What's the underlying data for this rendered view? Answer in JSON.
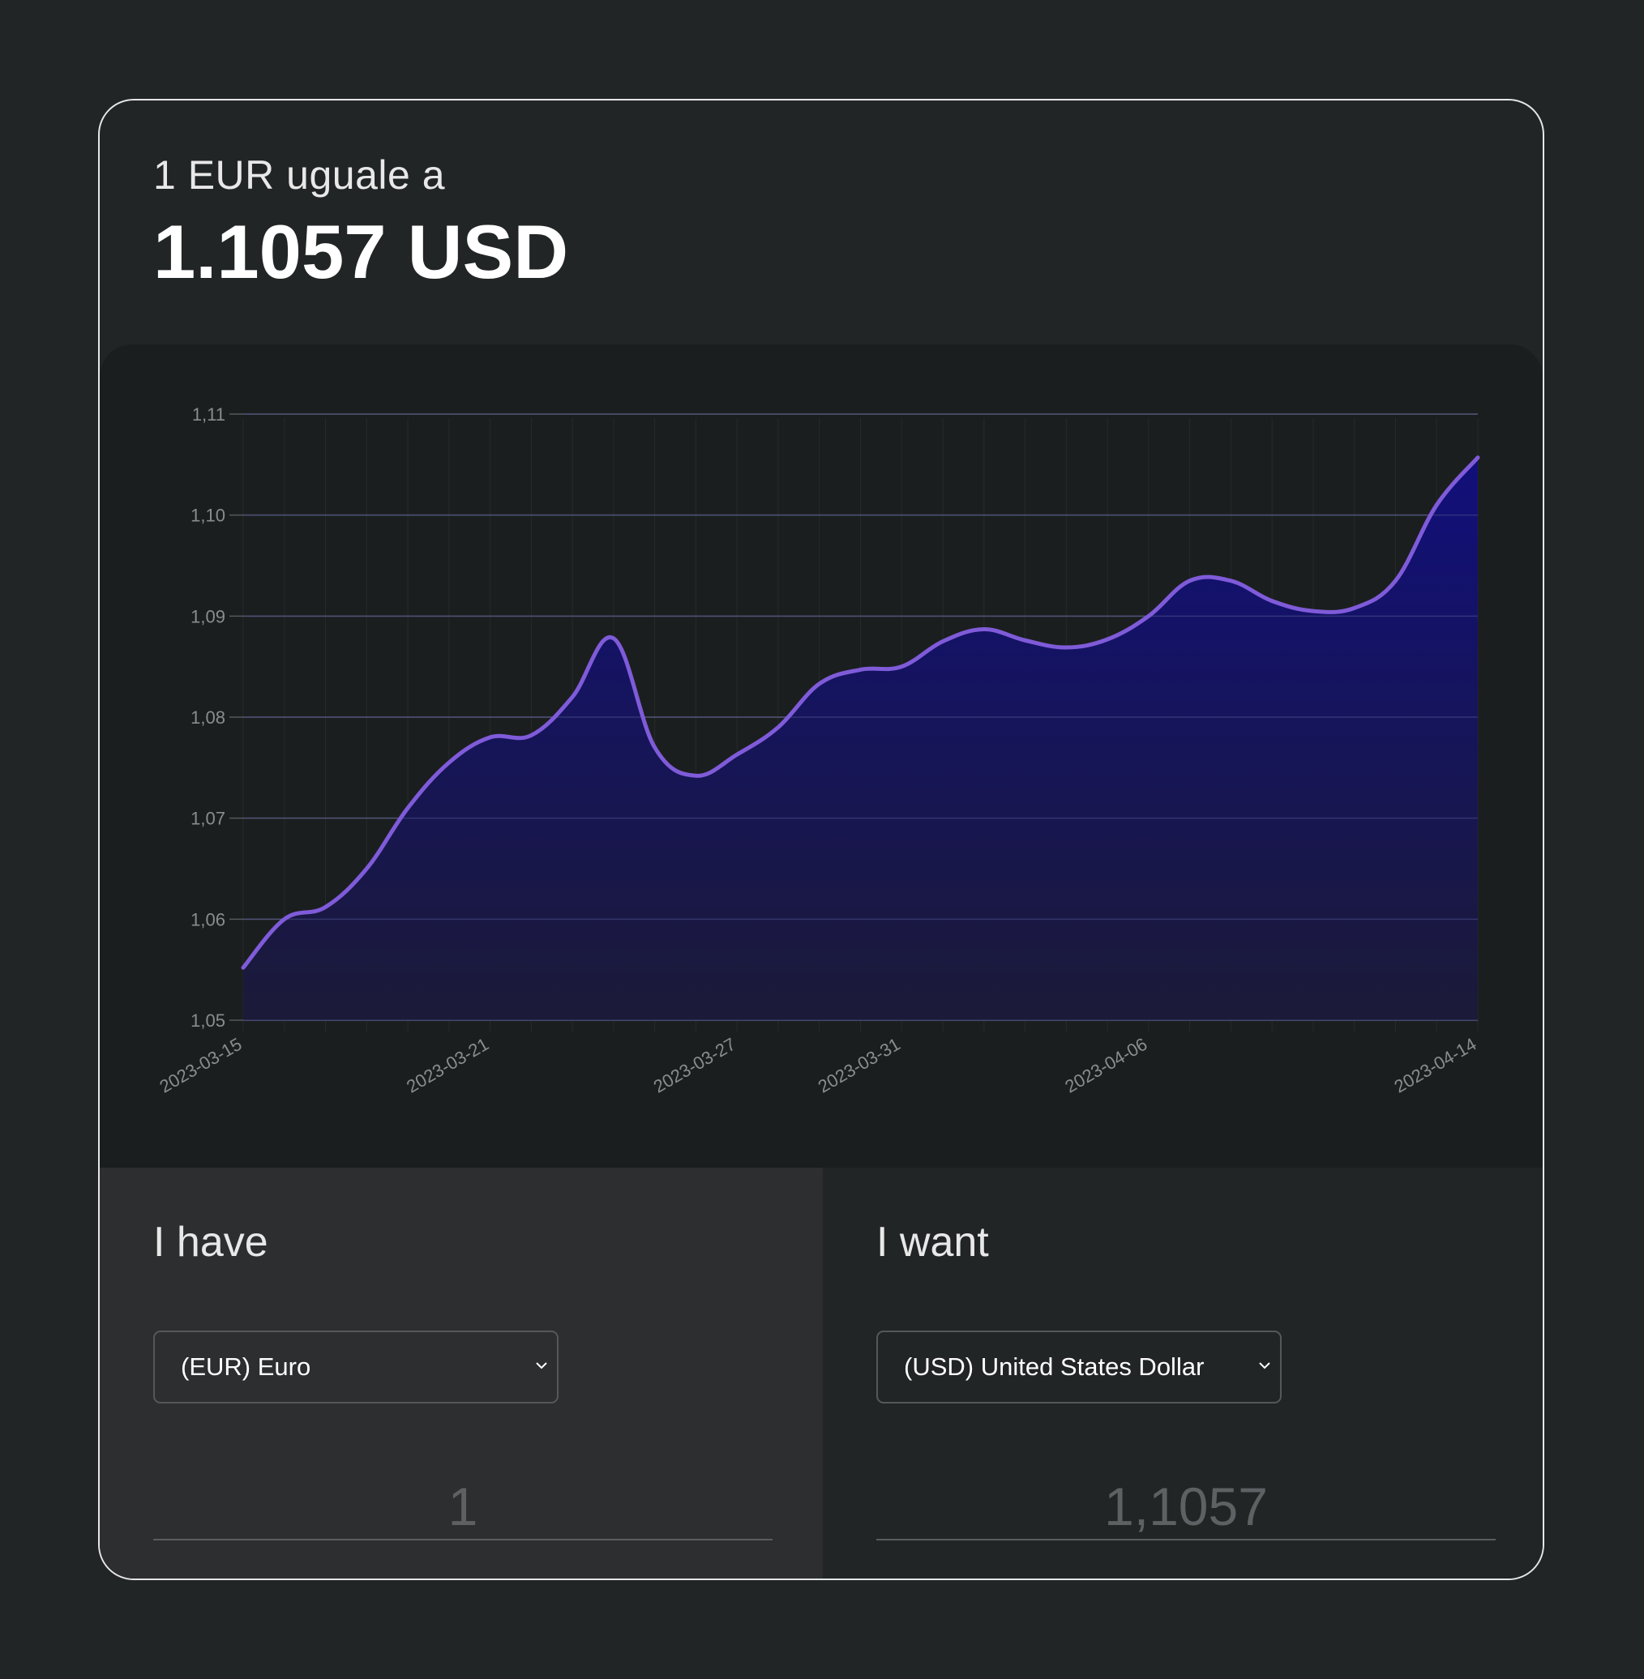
{
  "header": {
    "subtitle": "1 EUR uguale a",
    "rate": "1.1057 USD"
  },
  "chart_data": {
    "type": "area",
    "title": "",
    "xlabel": "",
    "ylabel": "",
    "ylim": [
      1.05,
      1.11
    ],
    "y_ticks": [
      "1,05",
      "1,06",
      "1,07",
      "1,08",
      "1,09",
      "1,10",
      "1,11"
    ],
    "x_tick_labels": [
      "2023-03-15",
      "2023-03-21",
      "2023-03-27",
      "2023-03-31",
      "2023-04-06",
      "2023-04-14"
    ],
    "grid": true,
    "colors": {
      "line": "#7f5bd9",
      "fill_top": "#110f7a",
      "fill_bottom": "#1b1a38"
    },
    "x": [
      "2023-03-15",
      "2023-03-16",
      "2023-03-17",
      "2023-03-18",
      "2023-03-19",
      "2023-03-20",
      "2023-03-21",
      "2023-03-22",
      "2023-03-23",
      "2023-03-24",
      "2023-03-25",
      "2023-03-26",
      "2023-03-27",
      "2023-03-28",
      "2023-03-29",
      "2023-03-30",
      "2023-03-31",
      "2023-04-01",
      "2023-04-02",
      "2023-04-03",
      "2023-04-04",
      "2023-04-05",
      "2023-04-06",
      "2023-04-07",
      "2023-04-08",
      "2023-04-09",
      "2023-04-10",
      "2023-04-11",
      "2023-04-12",
      "2023-04-13",
      "2023-04-14"
    ],
    "values": [
      1.0552,
      1.06,
      1.0612,
      1.065,
      1.071,
      1.0755,
      1.078,
      1.0782,
      1.082,
      1.0878,
      1.077,
      1.0742,
      1.0763,
      1.079,
      1.0833,
      1.0847,
      1.085,
      1.0875,
      1.0887,
      1.0876,
      1.0869,
      1.0877,
      1.09,
      1.0935,
      1.0935,
      1.0915,
      1.0905,
      1.0908,
      1.0935,
      1.101,
      1.1057
    ]
  },
  "converter": {
    "have": {
      "label": "I have",
      "currency": "(EUR) Euro",
      "amount": "1"
    },
    "want": {
      "label": "I want",
      "currency": "(USD) United States Dollar",
      "amount": "1,1057"
    }
  }
}
